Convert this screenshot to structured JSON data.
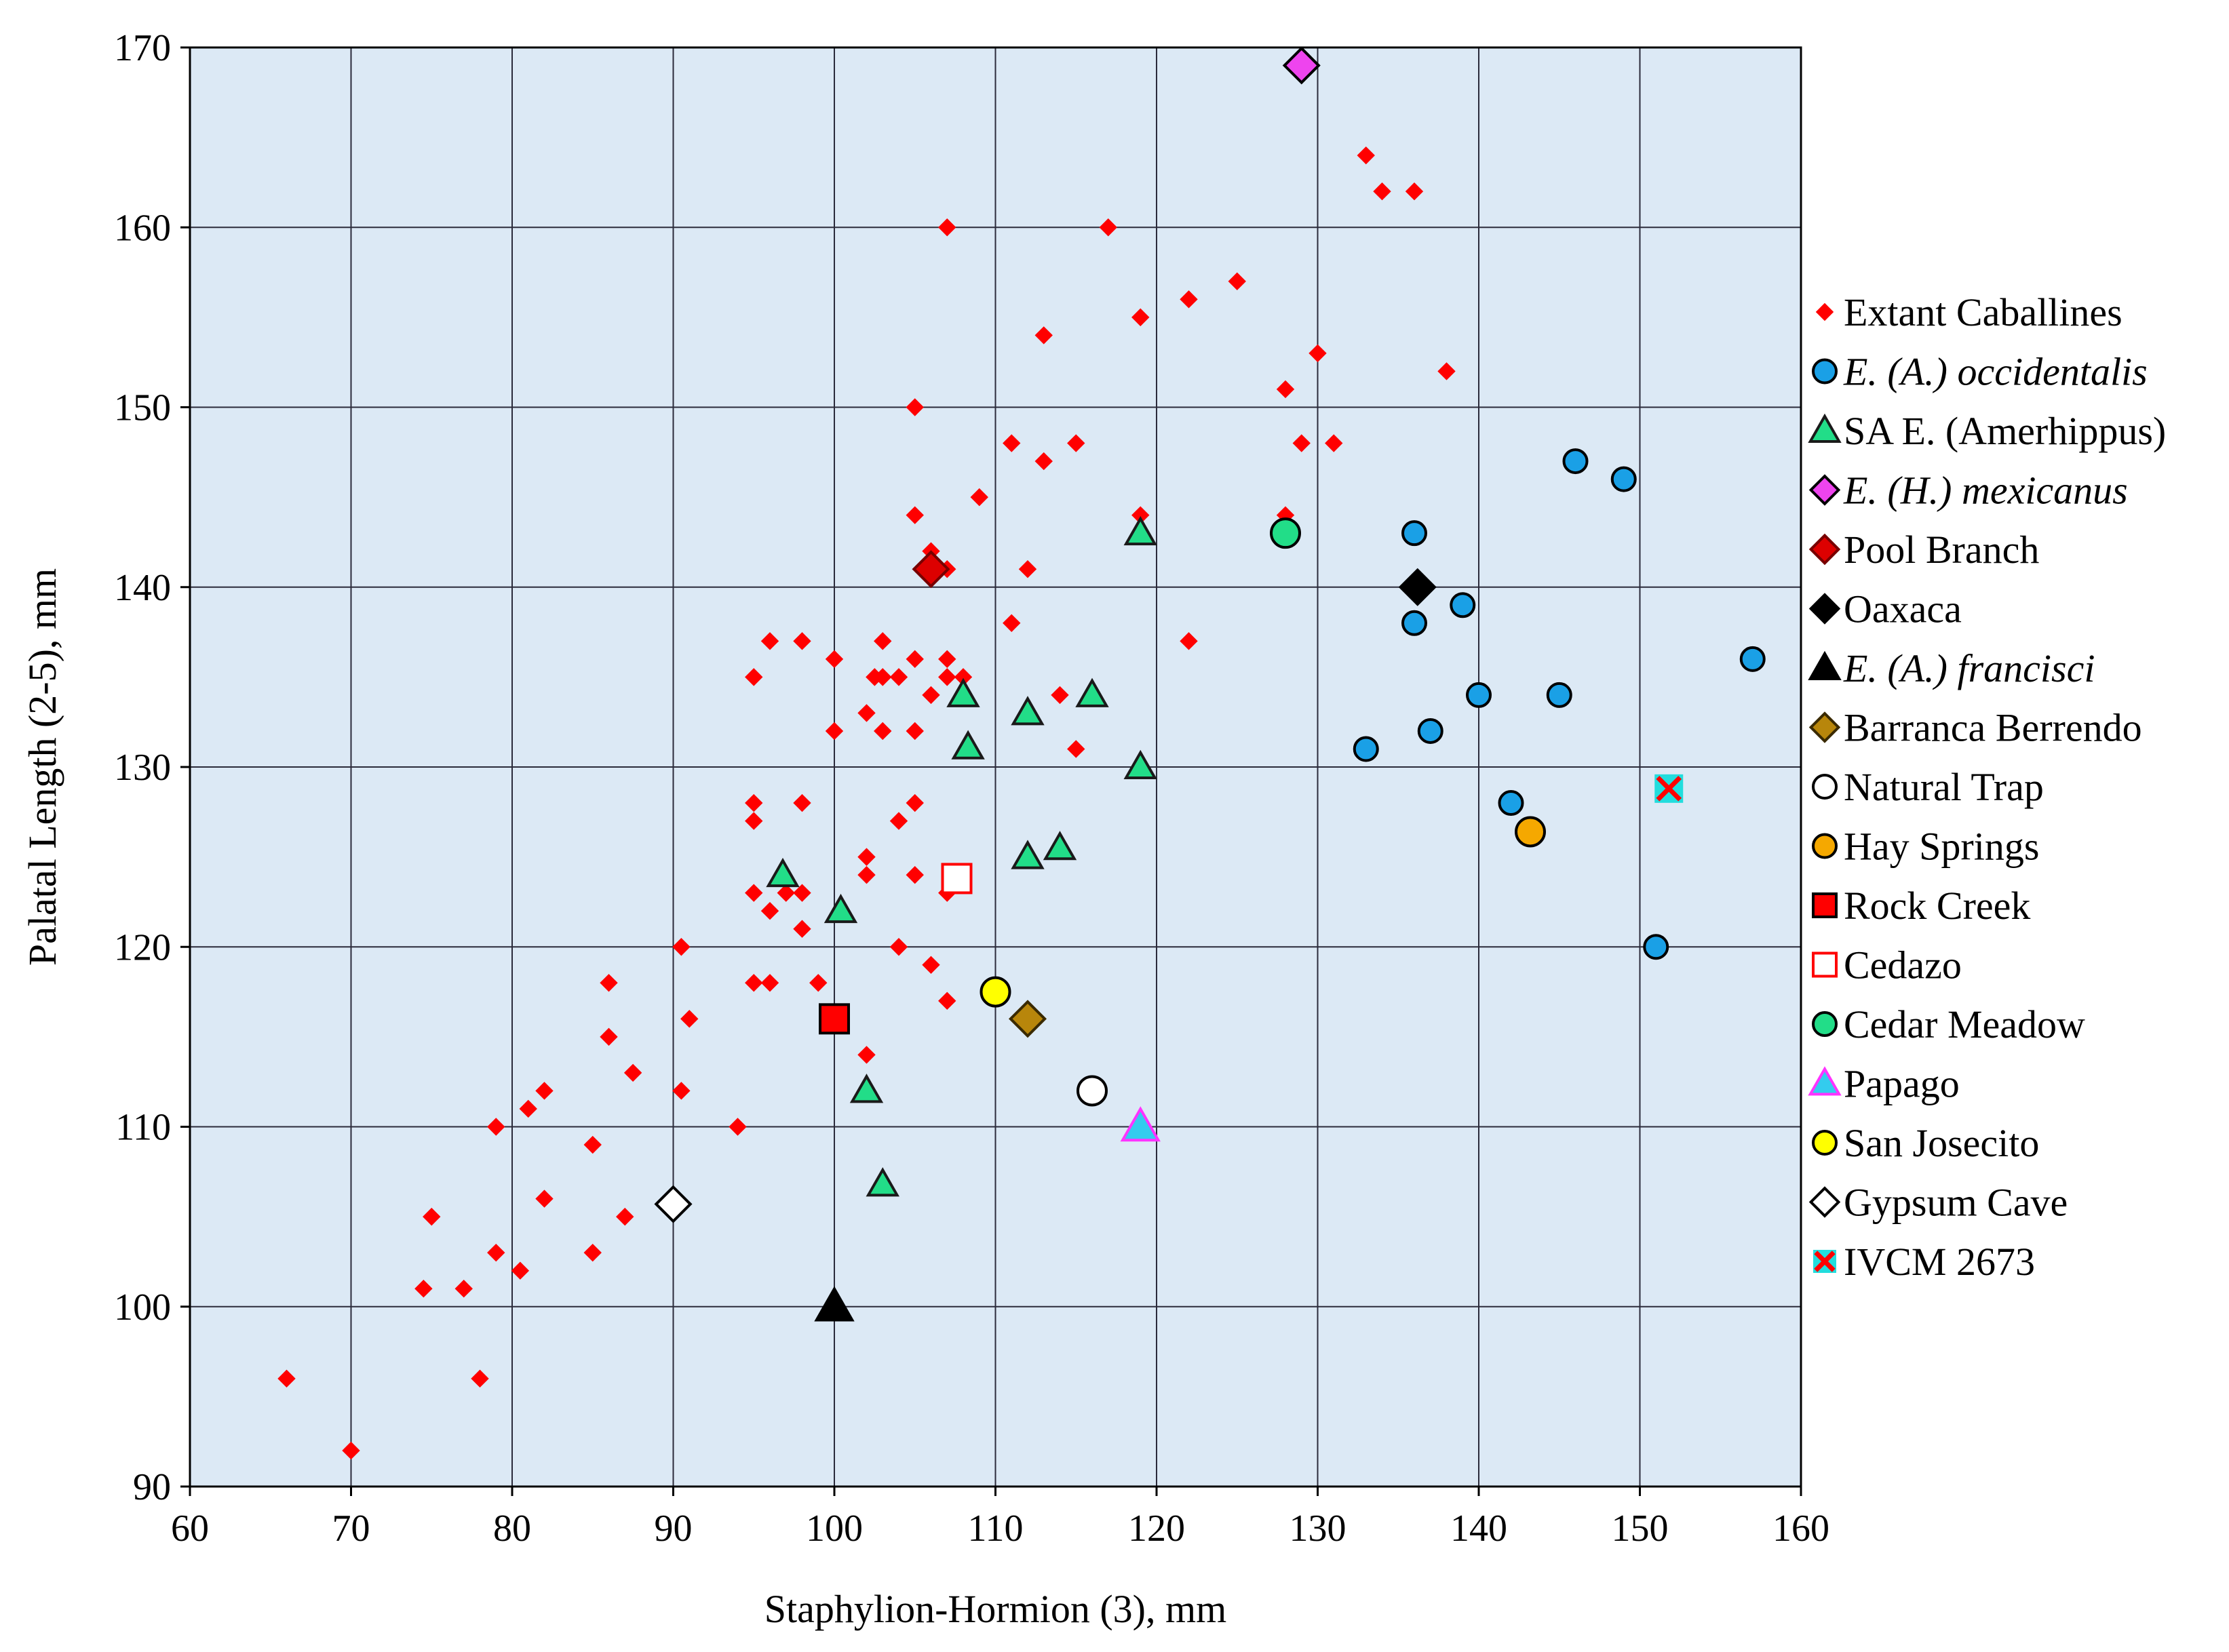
{
  "chart_data": {
    "type": "scatter",
    "xlabel": "Staphylion-Hormion (3), mm",
    "ylabel": "Palatal Length (2-5), mm",
    "xlim": [
      60,
      160
    ],
    "ylim": [
      90,
      170
    ],
    "xticks": [
      60,
      70,
      80,
      90,
      100,
      110,
      120,
      130,
      140,
      150,
      160
    ],
    "yticks": [
      90,
      100,
      110,
      120,
      130,
      140,
      150,
      160,
      170
    ],
    "grid": true,
    "plot_background": "#dce9f5",
    "legend_position": "right",
    "series": [
      {
        "name": "Extant Caballines",
        "italic": false,
        "marker": "diamond",
        "size": "small",
        "fill": "#ff0000",
        "stroke": "none",
        "points": [
          [
            66,
            96
          ],
          [
            70,
            92
          ],
          [
            74.5,
            101
          ],
          [
            75,
            105
          ],
          [
            77,
            101
          ],
          [
            78,
            96
          ],
          [
            79,
            103
          ],
          [
            79,
            110
          ],
          [
            80.5,
            102
          ],
          [
            81,
            111
          ],
          [
            82,
            112
          ],
          [
            82,
            106
          ],
          [
            85,
            109
          ],
          [
            85,
            103
          ],
          [
            86,
            118
          ],
          [
            86,
            115
          ],
          [
            87,
            105
          ],
          [
            87.5,
            113
          ],
          [
            90.5,
            120
          ],
          [
            90.5,
            112
          ],
          [
            91,
            116
          ],
          [
            94,
            110
          ],
          [
            95,
            135
          ],
          [
            95,
            128
          ],
          [
            95,
            127
          ],
          [
            95,
            123
          ],
          [
            95,
            118
          ],
          [
            96,
            137
          ],
          [
            96,
            122
          ],
          [
            96,
            118
          ],
          [
            97,
            123
          ],
          [
            98,
            137
          ],
          [
            98,
            128
          ],
          [
            98,
            123
          ],
          [
            98,
            121
          ],
          [
            99,
            118
          ],
          [
            100,
            136
          ],
          [
            100,
            132
          ],
          [
            102,
            133
          ],
          [
            102,
            125
          ],
          [
            102,
            124
          ],
          [
            102,
            114
          ],
          [
            102.5,
            135
          ],
          [
            103,
            137
          ],
          [
            103,
            135
          ],
          [
            103,
            132
          ],
          [
            104,
            135
          ],
          [
            104,
            127
          ],
          [
            104,
            120
          ],
          [
            105,
            150
          ],
          [
            105,
            144
          ],
          [
            105,
            136
          ],
          [
            105,
            132
          ],
          [
            105,
            128
          ],
          [
            105,
            124
          ],
          [
            106,
            142
          ],
          [
            106,
            134
          ],
          [
            106,
            119
          ],
          [
            107,
            160
          ],
          [
            107,
            141
          ],
          [
            107,
            136
          ],
          [
            107,
            135
          ],
          [
            107,
            123
          ],
          [
            107,
            117
          ],
          [
            108,
            135
          ],
          [
            109,
            145
          ],
          [
            111,
            148
          ],
          [
            111,
            138
          ],
          [
            112,
            141
          ],
          [
            113,
            154
          ],
          [
            113,
            147
          ],
          [
            114,
            134
          ],
          [
            115,
            148
          ],
          [
            115,
            131
          ],
          [
            117,
            160
          ],
          [
            119,
            155
          ],
          [
            119,
            144
          ],
          [
            122,
            156
          ],
          [
            122,
            137
          ],
          [
            125,
            157
          ],
          [
            128,
            151
          ],
          [
            128,
            144
          ],
          [
            129,
            148
          ],
          [
            130,
            153
          ],
          [
            131,
            148
          ],
          [
            133,
            164
          ],
          [
            134,
            162
          ],
          [
            136,
            162
          ],
          [
            138,
            152
          ]
        ]
      },
      {
        "name": "E. (A.) occidentalis",
        "italic": true,
        "marker": "circle",
        "size": "medium",
        "fill": "#1aa0e6",
        "stroke": "#000000",
        "points": [
          [
            133,
            131
          ],
          [
            136,
            143
          ],
          [
            136,
            138
          ],
          [
            137,
            132
          ],
          [
            139,
            139
          ],
          [
            140,
            134
          ],
          [
            142,
            128
          ],
          [
            145,
            134
          ],
          [
            146,
            147
          ],
          [
            149,
            146
          ],
          [
            151,
            120
          ],
          [
            157,
            136
          ]
        ]
      },
      {
        "name": "SA E. (Amerhippus)",
        "italic": false,
        "marker": "triangle",
        "size": "medium",
        "fill": "#22dd88",
        "stroke": "#1a1a1a",
        "points": [
          [
            96.8,
            124
          ],
          [
            100.4,
            122
          ],
          [
            102,
            112
          ],
          [
            103,
            106.8
          ],
          [
            108,
            134
          ],
          [
            108.3,
            131.1
          ],
          [
            112,
            133
          ],
          [
            112,
            125
          ],
          [
            114,
            125.5
          ],
          [
            116,
            134
          ],
          [
            119,
            143
          ],
          [
            119,
            130
          ]
        ]
      },
      {
        "name": "E. (H.) mexicanus",
        "italic": true,
        "marker": "diamond",
        "size": "large",
        "fill": "#ee44ee",
        "stroke": "#000000",
        "points": [
          [
            129,
            169
          ]
        ]
      },
      {
        "name": "Pool Branch",
        "italic": false,
        "marker": "diamond",
        "size": "large",
        "fill": "#dd0000",
        "stroke": "#770000",
        "points": [
          [
            106,
            141
          ]
        ]
      },
      {
        "name": "Oaxaca",
        "italic": false,
        "marker": "diamond",
        "size": "large",
        "fill": "#000000",
        "stroke": "#000000",
        "points": [
          [
            136.2,
            140
          ]
        ]
      },
      {
        "name": "E. (A.) francisci",
        "italic": true,
        "marker": "triangle",
        "size": "large",
        "fill": "#000000",
        "stroke": "#000000",
        "points": [
          [
            100,
            100
          ]
        ]
      },
      {
        "name": "Barranca Berrendo",
        "italic": false,
        "marker": "diamond",
        "size": "large",
        "fill": "#b8860b",
        "stroke": "#3a2a00",
        "points": [
          [
            112,
            116
          ]
        ]
      },
      {
        "name": "Natural Trap",
        "italic": false,
        "marker": "circle",
        "size": "large",
        "fill": "#ffffff",
        "stroke": "#000000",
        "points": [
          [
            116,
            112
          ]
        ]
      },
      {
        "name": "Hay Springs",
        "italic": false,
        "marker": "circle",
        "size": "large",
        "fill": "#f5a800",
        "stroke": "#000000",
        "points": [
          [
            143.2,
            126.4
          ]
        ]
      },
      {
        "name": "Rock Creek",
        "italic": false,
        "marker": "square",
        "size": "large",
        "fill": "#ff0000",
        "stroke": "#000000",
        "points": [
          [
            100,
            116
          ]
        ]
      },
      {
        "name": "Cedazo",
        "italic": false,
        "marker": "square",
        "size": "large",
        "fill": "#ffffff",
        "stroke": "#ff0000",
        "points": [
          [
            107.6,
            123.8
          ]
        ]
      },
      {
        "name": "Cedar Meadow",
        "italic": false,
        "marker": "circle",
        "size": "large",
        "fill": "#22dd88",
        "stroke": "#000000",
        "points": [
          [
            128,
            143
          ]
        ]
      },
      {
        "name": "Papago",
        "italic": false,
        "marker": "triangle",
        "size": "large",
        "fill": "#33ccee",
        "stroke": "#ff33ff",
        "points": [
          [
            119,
            110
          ]
        ]
      },
      {
        "name": "San Josecito",
        "italic": false,
        "marker": "circle",
        "size": "large",
        "fill": "#ffff00",
        "stroke": "#000000",
        "points": [
          [
            110,
            117.5
          ]
        ]
      },
      {
        "name": "Gypsum Cave",
        "italic": false,
        "marker": "diamond",
        "size": "large",
        "fill": "#ffffff",
        "stroke": "#000000",
        "points": [
          [
            90,
            105.7
          ]
        ]
      },
      {
        "name": "IVCM 2673",
        "italic": false,
        "marker": "xsquare",
        "size": "large",
        "fill": "#22dddd",
        "stroke": "#ff0000",
        "points": [
          [
            151.8,
            128.8
          ]
        ]
      }
    ]
  }
}
